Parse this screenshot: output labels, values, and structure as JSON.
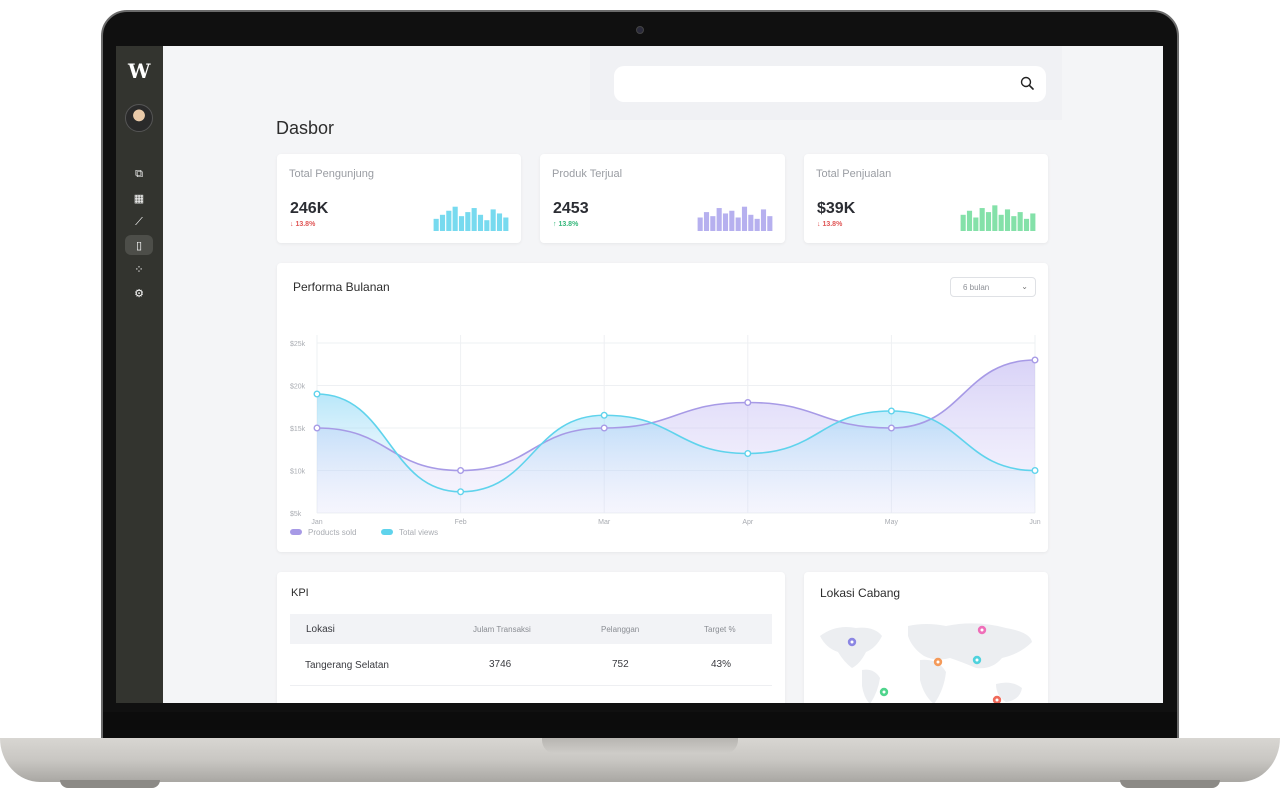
{
  "page_title": "Dasbor",
  "search": {
    "placeholder": ""
  },
  "nav": [
    {
      "icon": "layers-icon",
      "glyph": "⧉"
    },
    {
      "icon": "grid-icon",
      "glyph": "▦"
    },
    {
      "icon": "line-chart-icon",
      "glyph": "⟋"
    },
    {
      "icon": "sidebar-panel-icon",
      "glyph": "▯"
    },
    {
      "icon": "apps-icon",
      "glyph": "⁘"
    },
    {
      "icon": "settings-icon",
      "glyph": "⚙"
    }
  ],
  "stats": [
    {
      "label": "Total Pengunjung",
      "value": "246K",
      "change": "↓ 13.8%",
      "direction": "down",
      "color": "#5fd3ec",
      "bars": [
        0.45,
        0.6,
        0.75,
        0.9,
        0.55,
        0.7,
        0.85,
        0.6,
        0.4,
        0.8,
        0.65,
        0.5
      ]
    },
    {
      "label": "Produk Terjual",
      "value": "2453",
      "change": "↑ 13.8%",
      "direction": "up",
      "color": "#a9a2ec",
      "bars": [
        0.5,
        0.7,
        0.55,
        0.85,
        0.65,
        0.75,
        0.5,
        0.9,
        0.6,
        0.45,
        0.8,
        0.55
      ]
    },
    {
      "label": "Total Penjualan",
      "value": "$39K",
      "change": "↓ 13.8%",
      "direction": "down",
      "color": "#6fdc9a",
      "bars": [
        0.6,
        0.75,
        0.5,
        0.85,
        0.7,
        0.95,
        0.6,
        0.8,
        0.55,
        0.7,
        0.45,
        0.65
      ]
    }
  ],
  "performance": {
    "title": "Performa Bulanan",
    "range_select": "6 bulan"
  },
  "chart_data": {
    "type": "area",
    "x": [
      "Jan",
      "Feb",
      "Mar",
      "Apr",
      "May",
      "Jun"
    ],
    "y_ticks": [
      "$5k",
      "$10k",
      "$15k",
      "$20k",
      "$25k"
    ],
    "ylim": [
      5,
      25
    ],
    "series": [
      {
        "name": "Products sold",
        "color": "#a79ae6",
        "values": [
          15,
          10,
          15,
          18,
          15,
          23
        ]
      },
      {
        "name": "Total views",
        "color": "#5fd3ec",
        "values": [
          19,
          7.5,
          16.5,
          12,
          17,
          10
        ]
      }
    ],
    "grid": true,
    "legend": "bottom-left"
  },
  "kpi": {
    "title": "KPI",
    "headers": [
      "Lokasi",
      "Julam Transaksi",
      "Pelanggan",
      "Target %"
    ],
    "rows": [
      [
        "Tangerang Selatan",
        "3746",
        "752",
        "43%"
      ]
    ]
  },
  "map": {
    "title": "Lokasi Cabang",
    "pins": [
      {
        "color": "#8b86e3"
      },
      {
        "color": "#ef6fb9"
      },
      {
        "color": "#f49a5a"
      },
      {
        "color": "#4fd2dd"
      },
      {
        "color": "#4fd48c"
      },
      {
        "color": "#f06a5a"
      }
    ]
  }
}
